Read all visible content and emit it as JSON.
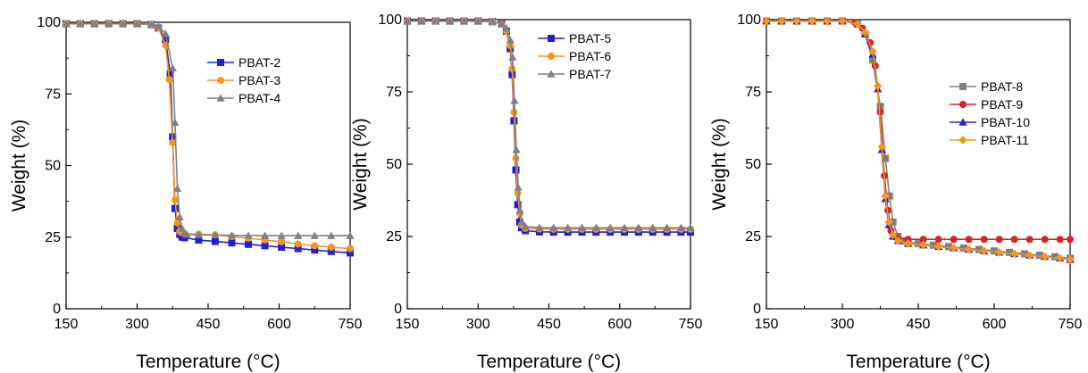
{
  "chart_data": [
    {
      "type": "line",
      "xlabel": "Temperature (°C)",
      "ylabel": "Weight (%)",
      "xlim": [
        150,
        750
      ],
      "ylim": [
        0,
        100
      ],
      "xticks": [
        150,
        300,
        450,
        600,
        750
      ],
      "yticks": [
        0,
        25,
        50,
        75,
        100
      ],
      "grid": false,
      "legend_position": "upper-middle",
      "series": [
        {
          "name": "PBAT-2",
          "color": "#1f1fd6",
          "marker": "square",
          "x": [
            150,
            180,
            210,
            240,
            270,
            300,
            330,
            345,
            360,
            370,
            375,
            380,
            385,
            390,
            395,
            400,
            430,
            465,
            500,
            535,
            570,
            605,
            640,
            675,
            710,
            750
          ],
          "y": [
            99.5,
            99.5,
            99.5,
            99.5,
            99.5,
            99.5,
            99.2,
            98,
            94,
            82,
            60,
            35,
            28,
            26,
            25,
            24.8,
            24,
            23.5,
            23,
            22.5,
            22,
            21.5,
            21,
            20.5,
            20,
            19.5
          ]
        },
        {
          "name": "PBAT-3",
          "color": "#f7941d",
          "marker": "circle",
          "x": [
            150,
            180,
            210,
            240,
            270,
            300,
            330,
            345,
            360,
            368,
            375,
            380,
            385,
            390,
            395,
            400,
            430,
            465,
            500,
            535,
            570,
            605,
            640,
            675,
            710,
            750
          ],
          "y": [
            99.5,
            99.5,
            99.5,
            99.5,
            99.5,
            99.5,
            99.2,
            98,
            92,
            80,
            58,
            38,
            30,
            27,
            26.5,
            26.2,
            26,
            25.8,
            25.2,
            24.6,
            24,
            23.4,
            22.6,
            22,
            21.5,
            21
          ]
        },
        {
          "name": "PBAT-4",
          "color": "#808080",
          "marker": "triangle",
          "x": [
            150,
            180,
            210,
            240,
            270,
            300,
            330,
            345,
            360,
            375,
            380,
            385,
            390,
            395,
            400,
            405,
            430,
            465,
            500,
            535,
            570,
            605,
            640,
            675,
            710,
            750
          ],
          "y": [
            99.5,
            99.5,
            99.5,
            99.5,
            99.5,
            99.5,
            99.3,
            98.5,
            96,
            84,
            65,
            42,
            32,
            28,
            26.5,
            26,
            25.8,
            25.7,
            25.6,
            25.6,
            25.5,
            25.5,
            25.5,
            25.5,
            25.5,
            25.5
          ]
        }
      ]
    },
    {
      "type": "line",
      "xlabel": "Temperature (°C)",
      "ylabel": "Weight (%)",
      "xlim": [
        150,
        750
      ],
      "ylim": [
        0,
        100
      ],
      "xticks": [
        150,
        300,
        450,
        600,
        750
      ],
      "yticks": [
        0,
        25,
        50,
        75,
        100
      ],
      "grid": false,
      "legend_position": "top-middle",
      "series": [
        {
          "name": "PBAT-5",
          "color": "#1f1fd6",
          "marker": "square",
          "x": [
            150,
            180,
            210,
            240,
            270,
            300,
            330,
            350,
            360,
            368,
            372,
            376,
            380,
            384,
            388,
            392,
            400,
            430,
            460,
            490,
            520,
            550,
            580,
            610,
            640,
            670,
            700,
            730,
            750
          ],
          "y": [
            99.5,
            99.5,
            99.5,
            99.5,
            99.5,
            99.5,
            99.3,
            98.5,
            96,
            90,
            81,
            65,
            48,
            36,
            30,
            28,
            27,
            26.6,
            26.5,
            26.5,
            26.5,
            26.5,
            26.5,
            26.5,
            26.5,
            26.5,
            26.5,
            26.5,
            26.5
          ]
        },
        {
          "name": "PBAT-6",
          "color": "#f7941d",
          "marker": "circle",
          "x": [
            150,
            180,
            210,
            240,
            270,
            300,
            330,
            350,
            360,
            368,
            372,
            376,
            380,
            384,
            388,
            392,
            400,
            430,
            460,
            490,
            520,
            550,
            580,
            610,
            640,
            670,
            700,
            730,
            750
          ],
          "y": [
            99.5,
            99.5,
            99.5,
            99.5,
            99.5,
            99.5,
            99.3,
            98.5,
            96,
            91,
            83,
            68,
            52,
            40,
            33,
            29,
            27.8,
            27.6,
            27.5,
            27.5,
            27.5,
            27.5,
            27.5,
            27.5,
            27.5,
            27.5,
            27.5,
            27.5,
            27.5
          ]
        },
        {
          "name": "PBAT-7",
          "color": "#808080",
          "marker": "triangle",
          "x": [
            150,
            180,
            210,
            240,
            270,
            300,
            330,
            350,
            360,
            368,
            373,
            377,
            381,
            385,
            389,
            393,
            400,
            430,
            460,
            490,
            520,
            550,
            580,
            610,
            640,
            670,
            700,
            730,
            750
          ],
          "y": [
            99.5,
            99.5,
            99.5,
            99.5,
            99.5,
            99.5,
            99.3,
            98.7,
            97,
            93,
            87,
            72,
            55,
            42,
            34,
            30,
            28.5,
            28,
            28,
            28,
            28,
            28,
            28,
            28,
            28,
            28,
            28,
            28,
            28
          ]
        }
      ]
    },
    {
      "type": "line",
      "xlabel": "Temperature (°C)",
      "ylabel": "Weight (%)",
      "xlim": [
        150,
        750
      ],
      "ylim": [
        0,
        100
      ],
      "xticks": [
        150,
        300,
        450,
        600,
        750
      ],
      "yticks": [
        0,
        25,
        50,
        75,
        100
      ],
      "grid": false,
      "legend_position": "center-right",
      "series": [
        {
          "name": "PBAT-8",
          "color": "#808080",
          "marker": "square",
          "x": [
            150,
            180,
            210,
            240,
            270,
            300,
            330,
            345,
            360,
            375,
            385,
            393,
            400,
            410,
            420,
            430,
            450,
            480,
            510,
            540,
            570,
            600,
            630,
            660,
            690,
            720,
            750
          ],
          "y": [
            99.5,
            99.5,
            99.5,
            99.5,
            99.5,
            99.5,
            98.5,
            95,
            86,
            70,
            52,
            39,
            30,
            25,
            23.5,
            23,
            22.5,
            22,
            21.5,
            21,
            20.5,
            20,
            19.5,
            19,
            18.5,
            18,
            17.5
          ]
        },
        {
          "name": "PBAT-9",
          "color": "#e02020",
          "marker": "circle",
          "x": [
            150,
            180,
            210,
            240,
            270,
            300,
            325,
            340,
            355,
            365,
            375,
            383,
            390,
            396,
            403,
            410,
            430,
            460,
            490,
            520,
            550,
            580,
            610,
            640,
            670,
            700,
            730,
            750
          ],
          "y": [
            99.5,
            99.5,
            99.5,
            99.5,
            99.5,
            99.5,
            99,
            97,
            92,
            84,
            68,
            46,
            34,
            27,
            25,
            24.3,
            24,
            24,
            24,
            24,
            24,
            24,
            24,
            24,
            24,
            24,
            24,
            24
          ]
        },
        {
          "name": "PBAT-10",
          "color": "#2020d8",
          "marker": "triangle",
          "x": [
            150,
            180,
            210,
            240,
            270,
            300,
            330,
            345,
            360,
            370,
            378,
            385,
            392,
            400,
            410,
            430,
            460,
            490,
            520,
            550,
            580,
            610,
            640,
            670,
            700,
            730,
            750
          ],
          "y": [
            99.5,
            99.5,
            99.5,
            99.5,
            99.5,
            99.5,
            98.5,
            95,
            88,
            76,
            55,
            38,
            29,
            25,
            23.5,
            22.5,
            22,
            21.5,
            21,
            20.5,
            20,
            19.5,
            19,
            18.5,
            18,
            17.5,
            17
          ]
        },
        {
          "name": "PBAT-11",
          "color": "#f7941d",
          "marker": "diamond",
          "x": [
            150,
            180,
            210,
            240,
            270,
            300,
            330,
            345,
            360,
            370,
            378,
            385,
            392,
            400,
            410,
            430,
            460,
            490,
            520,
            550,
            580,
            610,
            640,
            670,
            700,
            730,
            750
          ],
          "y": [
            99.5,
            99.5,
            99.5,
            99.5,
            99.5,
            99.5,
            98.5,
            95.5,
            89,
            77,
            56,
            39,
            30,
            25.5,
            23.5,
            22.5,
            22,
            21.5,
            21,
            20.5,
            20,
            19.5,
            19,
            18.5,
            18,
            17.5,
            17
          ]
        }
      ]
    }
  ]
}
